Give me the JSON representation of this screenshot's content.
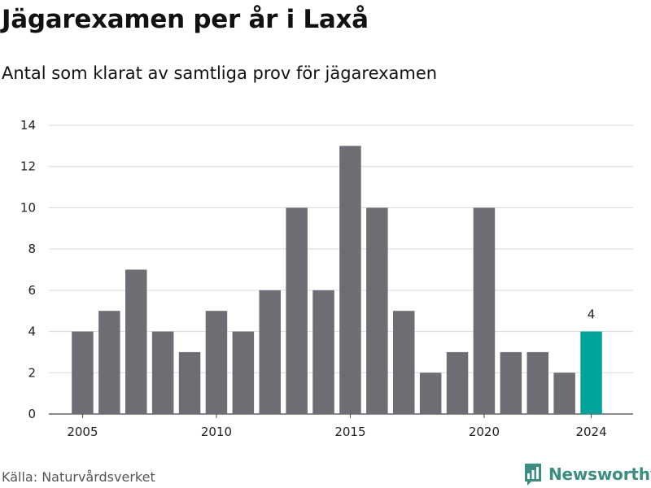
{
  "header": {
    "title": "Jägarexamen per år i Laxå",
    "subtitle": "Antal som klarat av samtliga prov för jägarexamen"
  },
  "footer": {
    "source": "Källa: Naturvårdsverket",
    "brand": "Newsworthy"
  },
  "colors": {
    "bar": "#6e6d73",
    "highlight": "#00a49a",
    "grid": "#d9d9d9",
    "brand": "#3a8f80"
  },
  "chart_data": {
    "type": "bar",
    "title": "Jägarexamen per år i Laxå",
    "subtitle": "Antal som klarat av samtliga prov för jägarexamen",
    "xlabel": "",
    "ylabel": "",
    "categories": [
      2005,
      2006,
      2007,
      2008,
      2009,
      2010,
      2011,
      2012,
      2013,
      2014,
      2015,
      2016,
      2017,
      2018,
      2019,
      2020,
      2021,
      2022,
      2023,
      2024
    ],
    "values": [
      4,
      5,
      7,
      4,
      3,
      5,
      4,
      6,
      10,
      6,
      13,
      10,
      5,
      2,
      3,
      10,
      3,
      3,
      2,
      4
    ],
    "highlight_category": 2024,
    "data_labels": [
      {
        "category": 2024,
        "text": "4"
      }
    ],
    "ylim": [
      0,
      14
    ],
    "yticks": [
      0,
      2,
      4,
      6,
      8,
      10,
      12,
      14
    ],
    "xticks": [
      2005,
      2010,
      2015,
      2020,
      2024
    ],
    "grid": "horizontal",
    "legend": "none"
  }
}
